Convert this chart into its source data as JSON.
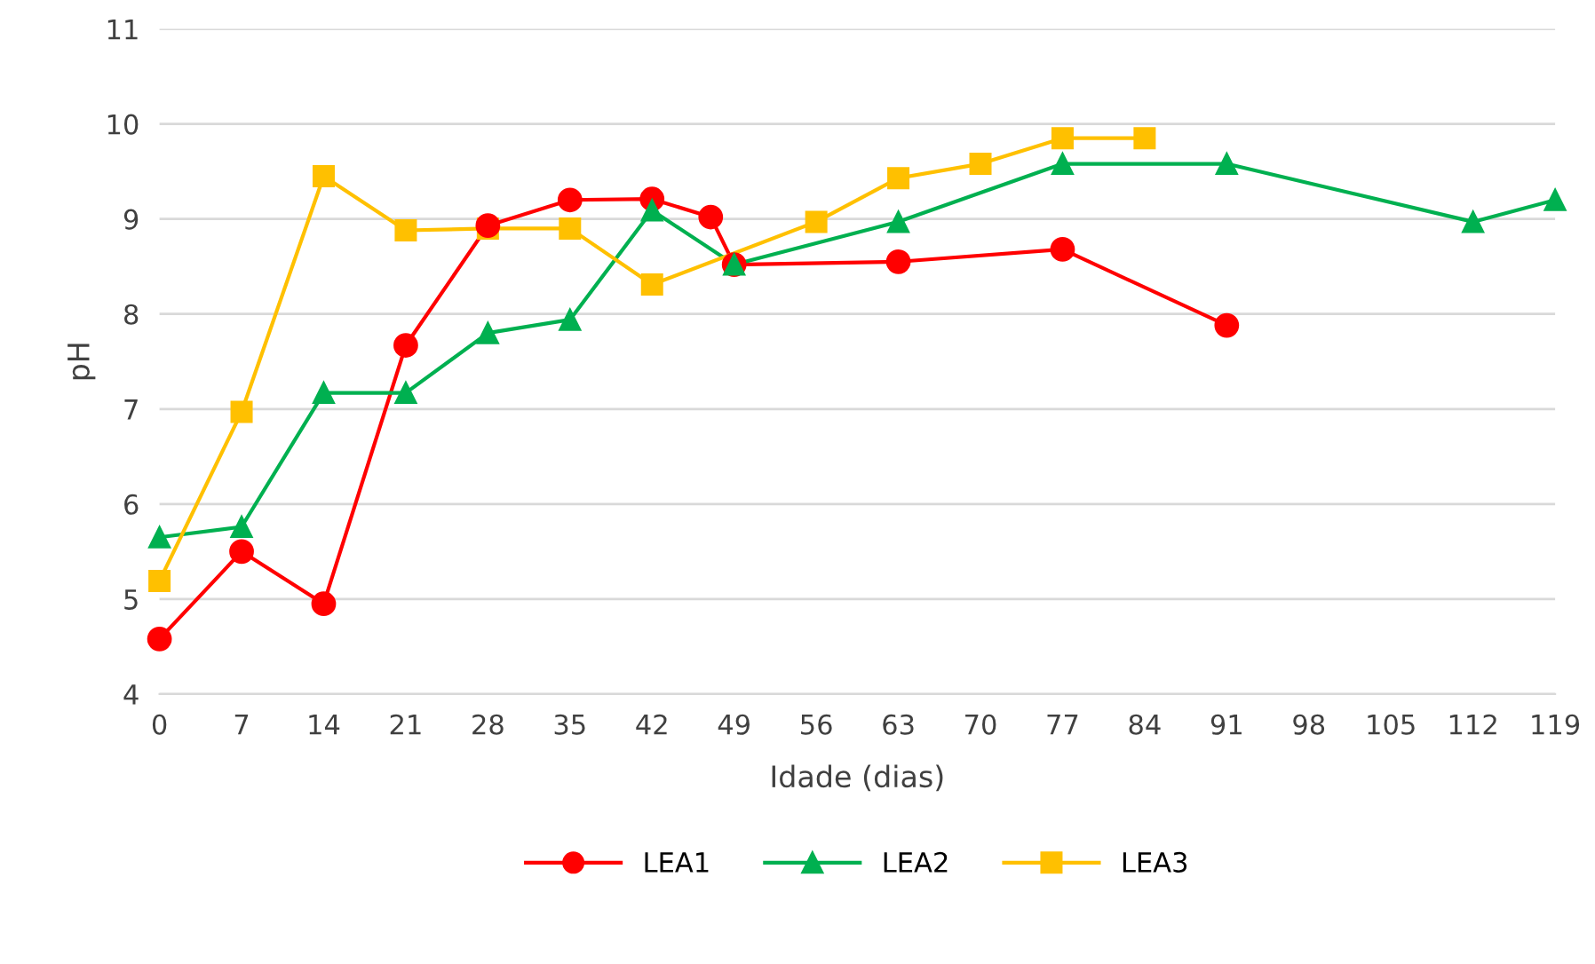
{
  "chart_data": {
    "type": "line",
    "xlabel": "Idade (dias)",
    "ylabel": "pH",
    "xlim": [
      0,
      119
    ],
    "xticks": [
      0,
      7,
      14,
      21,
      28,
      35,
      42,
      49,
      56,
      63,
      70,
      77,
      84,
      91,
      98,
      105,
      112,
      119
    ],
    "ylim": [
      4,
      11
    ],
    "yticks": [
      4,
      5,
      6,
      7,
      8,
      9,
      10,
      11
    ],
    "grid": "y",
    "legend": "bottom",
    "series": [
      {
        "name": "LEA1",
        "color": "#ff0000",
        "marker": "circle",
        "x": [
          0,
          7,
          14,
          21,
          28,
          35,
          42,
          47,
          49,
          63,
          77,
          91
        ],
        "values": [
          4.58,
          5.5,
          4.95,
          7.67,
          8.93,
          9.2,
          9.21,
          9.02,
          8.52,
          8.55,
          8.68,
          7.88
        ]
      },
      {
        "name": "LEA2",
        "color": "#00b050",
        "marker": "triangle",
        "x": [
          0,
          7,
          14,
          21,
          28,
          35,
          42,
          49,
          63,
          77,
          91,
          112,
          119
        ],
        "values": [
          5.65,
          5.76,
          7.17,
          7.17,
          7.8,
          7.94,
          9.09,
          8.52,
          8.97,
          9.58,
          9.58,
          8.97,
          9.2
        ]
      },
      {
        "name": "LEA3",
        "color": "#ffc000",
        "marker": "square",
        "x": [
          0,
          7,
          14,
          21,
          28,
          35,
          42,
          56,
          63,
          70,
          77,
          84
        ],
        "values": [
          5.19,
          6.97,
          9.45,
          8.88,
          8.9,
          8.9,
          8.31,
          8.97,
          9.43,
          9.58,
          9.85,
          9.85
        ]
      }
    ]
  }
}
